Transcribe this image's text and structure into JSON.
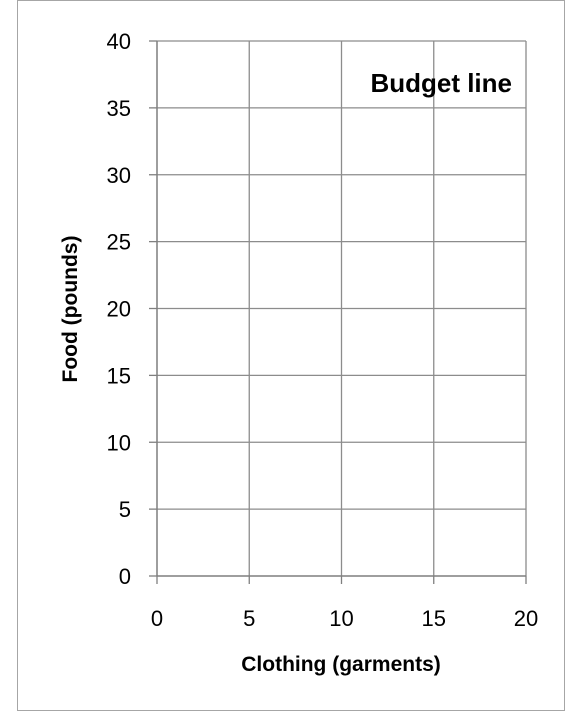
{
  "chart_data": {
    "type": "line",
    "title": "Budget line",
    "xlabel": "Clothing (garments)",
    "ylabel": "Food (pounds)",
    "xlim": [
      0,
      20
    ],
    "ylim": [
      0,
      40
    ],
    "x_ticks": [
      0,
      5,
      10,
      15,
      20
    ],
    "y_ticks": [
      0,
      5,
      10,
      15,
      20,
      25,
      30,
      35,
      40
    ],
    "x_tick_labels": [
      "0",
      "5",
      "10",
      "15",
      "20"
    ],
    "y_tick_labels": [
      "0",
      "5",
      "10",
      "15",
      "20",
      "25",
      "30",
      "35",
      "40"
    ],
    "grid": true,
    "legend": "none",
    "series": []
  },
  "colors": {
    "frame_border": "#a6a6a6",
    "gridline": "#8c8c8c",
    "axis": "#7f7f7f",
    "text": "#000000"
  }
}
